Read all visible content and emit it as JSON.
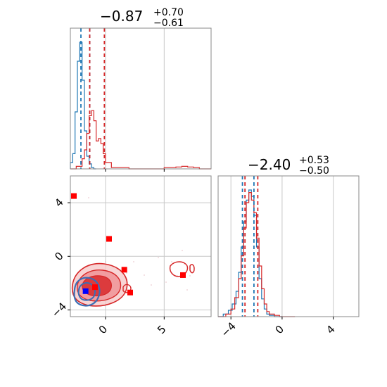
{
  "chart_data": [
    {
      "type": "histogram",
      "panel": "top-left",
      "title": {
        "main": "−0.87",
        "sup": "+0.70",
        "sub": "−0.61"
      },
      "xlim": [
        -3.0,
        9.0
      ],
      "xticks": [
        0,
        5
      ],
      "grid": true,
      "series": [
        {
          "color": "#1f77b4",
          "bins": [
            -3.0,
            -2.8,
            -2.6,
            -2.4,
            -2.2,
            -2.0,
            -1.8,
            -1.6,
            -1.4,
            -1.2,
            -1.0,
            -0.8
          ],
          "counts": [
            0.05,
            0.12,
            0.45,
            0.85,
            1.0,
            0.7,
            0.3,
            0.1,
            0.04,
            0.01,
            0.0
          ],
          "quantiles": [
            -2.1,
            -1.35
          ]
        },
        {
          "color": "#d62728",
          "bins": [
            -3.0,
            -2.5,
            -2.0,
            -1.8,
            -1.6,
            -1.4,
            -1.2,
            -1.0,
            -0.8,
            -0.6,
            -0.4,
            -0.2,
            0.0,
            0.5,
            1.0,
            2.0,
            3.0,
            4.0,
            5.0,
            6.0,
            6.5,
            7.0,
            7.5,
            8.0,
            9.0
          ],
          "counts": [
            0.0,
            0.02,
            0.08,
            0.15,
            0.28,
            0.42,
            0.46,
            0.38,
            0.22,
            0.24,
            0.2,
            0.12,
            0.05,
            0.01,
            0.01,
            0.0,
            0.0,
            0.0,
            0.01,
            0.015,
            0.02,
            0.015,
            0.01,
            0.0
          ],
          "quantiles": [
            -1.35,
            -0.1
          ]
        }
      ]
    },
    {
      "type": "contour",
      "panel": "bottom-left",
      "xlim": [
        -3.0,
        9.0
      ],
      "ylim": [
        -4.5,
        6.0
      ],
      "xticks": [
        0,
        5
      ],
      "yticks": [
        -4,
        0,
        4
      ],
      "grid": true,
      "square_markers": {
        "color": "#ff0000",
        "points": [
          [
            -2.7,
            4.5
          ],
          [
            0.3,
            1.3
          ],
          [
            1.6,
            -1.0
          ],
          [
            2.1,
            -2.7
          ],
          [
            6.6,
            -1.4
          ],
          [
            -0.9,
            -2.3
          ]
        ]
      },
      "blue_marker": {
        "color": "#0000ff",
        "point": [
          -1.7,
          -2.6
        ]
      }
    },
    {
      "type": "histogram",
      "panel": "bottom-right",
      "title": {
        "main": "−2.40",
        "sup": "+0.53",
        "sub": "−0.50"
      },
      "xlim": [
        -5.0,
        6.0
      ],
      "xticks": [
        -4,
        0,
        4
      ],
      "grid": true,
      "series": [
        {
          "color": "#1f77b4",
          "bins": [
            -5.0,
            -4.6,
            -4.2,
            -3.9,
            -3.6,
            -3.4,
            -3.2,
            -3.0,
            -2.8,
            -2.6,
            -2.4,
            -2.2,
            -2.0,
            -1.8,
            -1.6,
            -1.4,
            -1.2,
            -1.0,
            -0.6,
            0.0
          ],
          "counts": [
            0.0,
            0.02,
            0.05,
            0.1,
            0.2,
            0.35,
            0.55,
            0.75,
            0.92,
            1.0,
            0.95,
            0.8,
            0.55,
            0.3,
            0.14,
            0.06,
            0.02,
            0.01,
            0.0
          ],
          "quantiles": [
            -3.1,
            -2.2
          ]
        },
        {
          "color": "#d62728",
          "bins": [
            -5.0,
            -4.4,
            -4.0,
            -3.7,
            -3.4,
            -3.2,
            -3.0,
            -2.8,
            -2.6,
            -2.4,
            -2.2,
            -2.0,
            -1.8,
            -1.6,
            -1.4,
            -1.2,
            -1.0,
            -0.6,
            -0.2,
            0.2,
            1.0
          ],
          "counts": [
            0.0,
            0.02,
            0.06,
            0.15,
            0.3,
            0.48,
            0.7,
            0.9,
            0.98,
            0.92,
            0.82,
            0.62,
            0.4,
            0.22,
            0.1,
            0.04,
            0.02,
            0.01,
            0.0,
            0.0
          ],
          "quantiles": [
            -2.9,
            -1.9
          ]
        }
      ]
    }
  ]
}
